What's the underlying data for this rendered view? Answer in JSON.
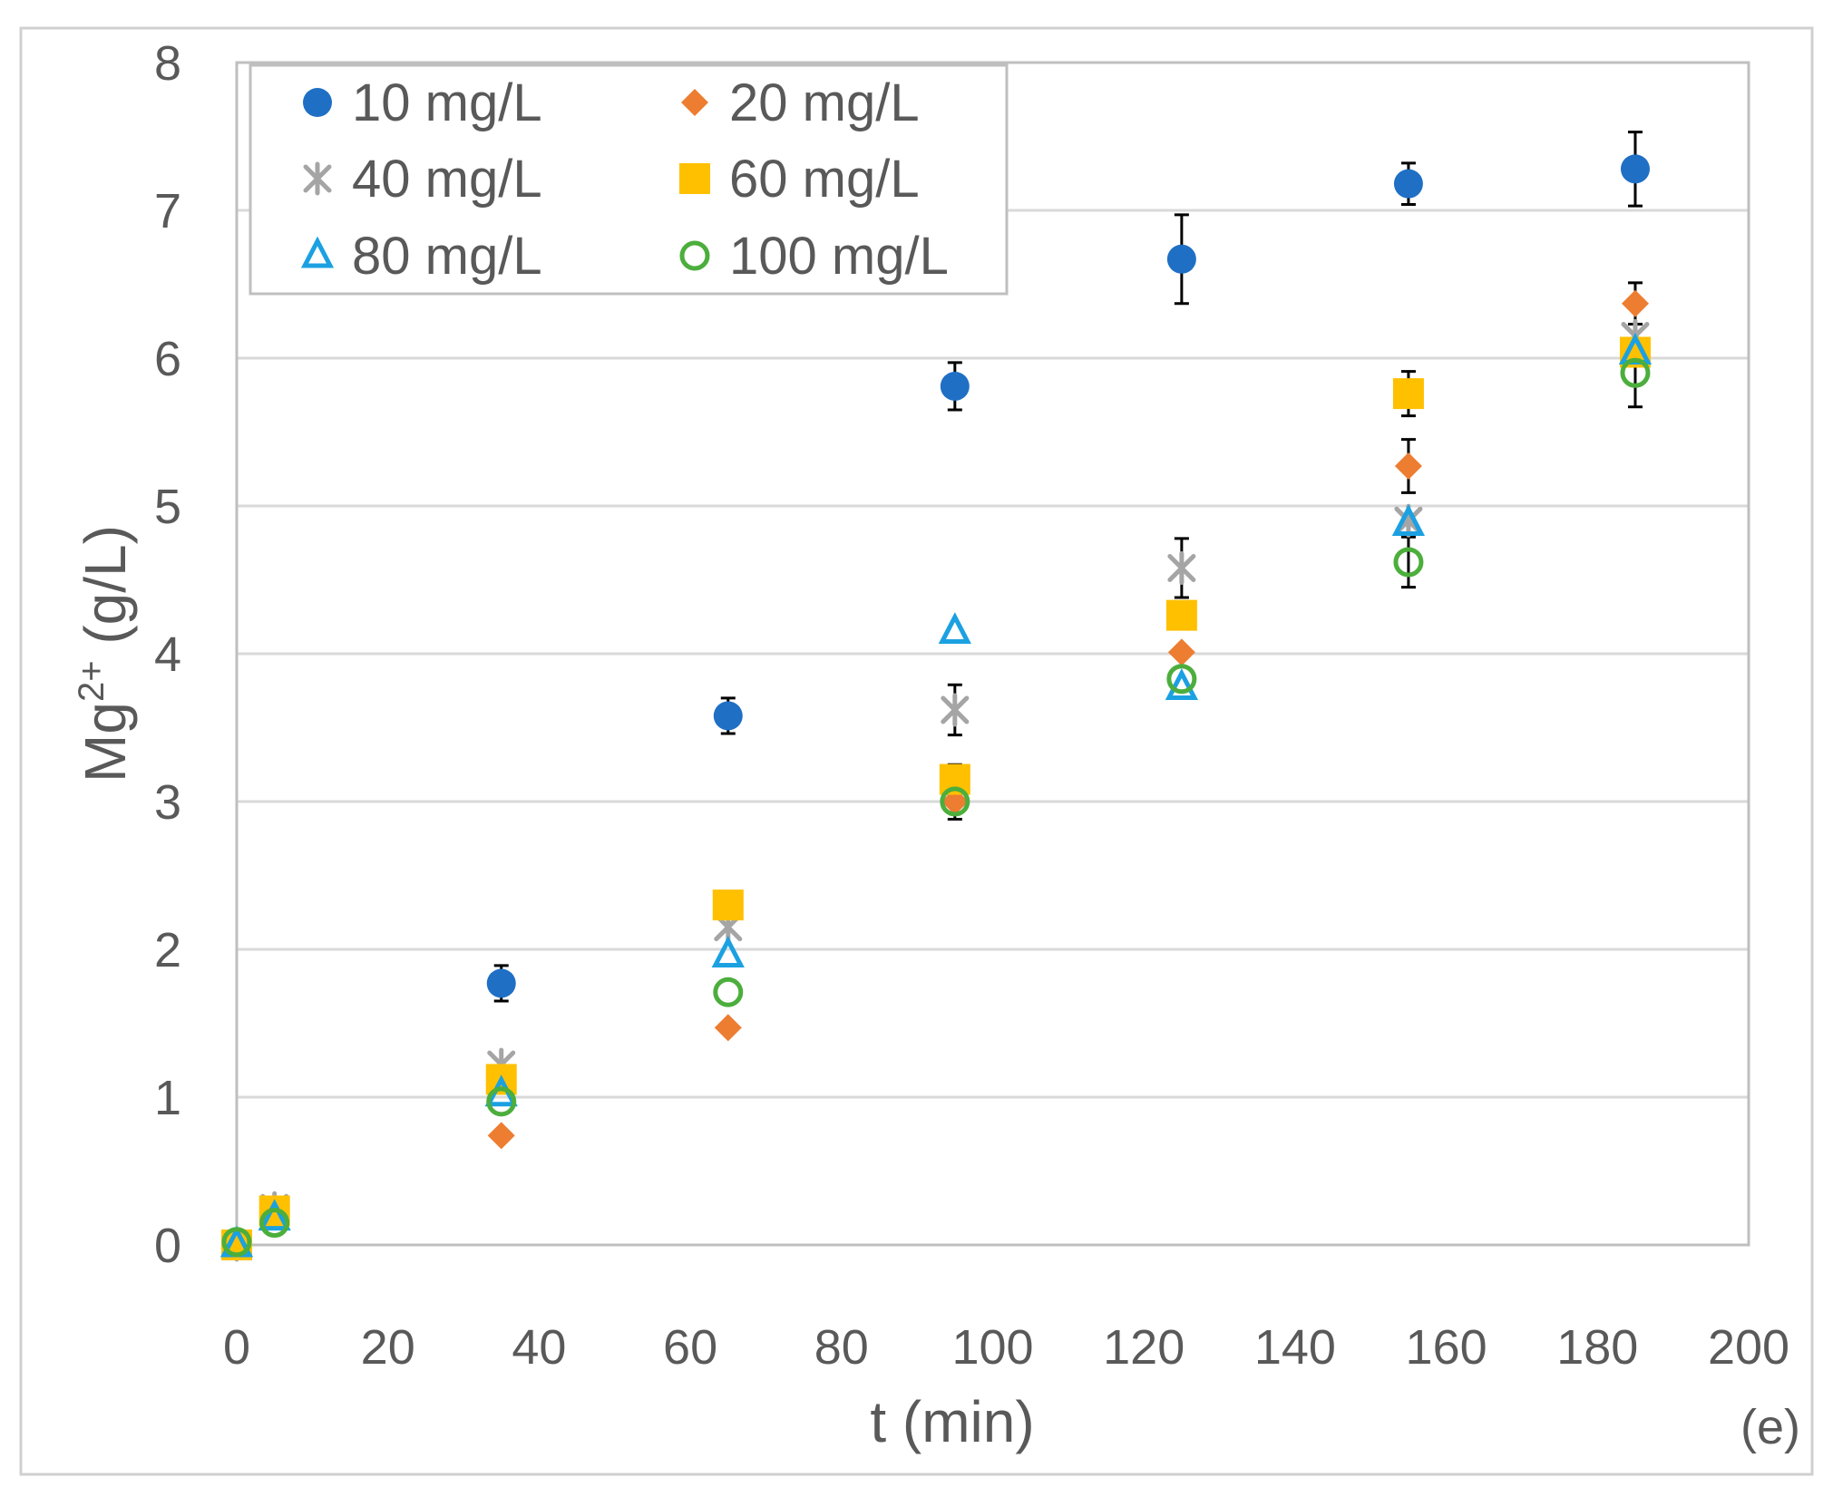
{
  "chart_data": {
    "type": "scatter",
    "panel_label": "(e)",
    "xlabel": "t (min)",
    "ylabel_base": "Mg",
    "ylabel_sup": "2+",
    "ylabel_rest": " (g/L)",
    "xlim": [
      0,
      200
    ],
    "ylim": [
      0,
      8
    ],
    "xticks": [
      "0",
      "20",
      "40",
      "60",
      "80",
      "100",
      "120",
      "140",
      "160",
      "180",
      "200"
    ],
    "yticks": [
      "0",
      "1",
      "2",
      "3",
      "4",
      "5",
      "6",
      "7",
      "8"
    ],
    "grid": "horizontal",
    "legend_position": "top-left",
    "series": [
      {
        "name": "10 mg/L",
        "marker": "filled-circle",
        "color": "#1f6fc5",
        "x": [
          0,
          5,
          35,
          65,
          95,
          125,
          155,
          185
        ],
        "y": [
          0.0,
          0.2,
          1.77,
          3.58,
          5.81,
          6.67,
          7.18,
          7.28
        ],
        "err": [
          0.0,
          0.0,
          0.12,
          0.12,
          0.16,
          0.3,
          0.14,
          0.25
        ]
      },
      {
        "name": "20 mg/L",
        "marker": "filled-diamond",
        "color": "#ed7d31",
        "x": [
          0,
          5,
          35,
          65,
          95,
          125,
          155,
          185
        ],
        "y": [
          0.0,
          0.2,
          0.74,
          1.47,
          3.0,
          4.01,
          5.27,
          6.37
        ],
        "err": [
          0.0,
          0.0,
          0.0,
          0.0,
          0.0,
          0.0,
          0.18,
          0.14
        ]
      },
      {
        "name": "40 mg/L",
        "marker": "asterisk",
        "color": "#a5a5a5",
        "x": [
          0,
          5,
          35,
          65,
          95,
          125,
          155,
          185
        ],
        "y": [
          0.0,
          0.25,
          1.22,
          2.15,
          3.62,
          4.58,
          4.9,
          6.15
        ],
        "err": [
          0.0,
          0.0,
          0.0,
          0.0,
          0.17,
          0.2,
          0.0,
          0.0
        ]
      },
      {
        "name": "60 mg/L",
        "marker": "filled-square",
        "color": "#ffc000",
        "x": [
          0,
          5,
          35,
          65,
          95,
          125,
          155,
          185
        ],
        "y": [
          0.0,
          0.23,
          1.12,
          2.3,
          3.15,
          4.26,
          5.76,
          6.04
        ],
        "err": [
          0.0,
          0.0,
          0.0,
          0.0,
          0.1,
          0.0,
          0.15,
          0.0
        ]
      },
      {
        "name": "80 mg/L",
        "marker": "hollow-triangle",
        "color": "#1ba1e2",
        "x": [
          0,
          5,
          35,
          65,
          95,
          125,
          155,
          185
        ],
        "y": [
          0.0,
          0.18,
          1.02,
          1.96,
          4.15,
          3.77,
          4.88,
          6.04
        ],
        "err": [
          0.0,
          0.0,
          0.0,
          0.0,
          0.0,
          0.0,
          0.0,
          0.0
        ]
      },
      {
        "name": "100 mg/L",
        "marker": "hollow-circle",
        "color": "#4cae3c",
        "x": [
          0,
          5,
          35,
          65,
          95,
          125,
          155,
          185
        ],
        "y": [
          0.02,
          0.15,
          0.97,
          1.71,
          3.0,
          3.83,
          4.62,
          5.9
        ],
        "err": [
          0.0,
          0.0,
          0.0,
          0.0,
          0.12,
          0.0,
          0.17,
          0.23
        ]
      }
    ]
  }
}
